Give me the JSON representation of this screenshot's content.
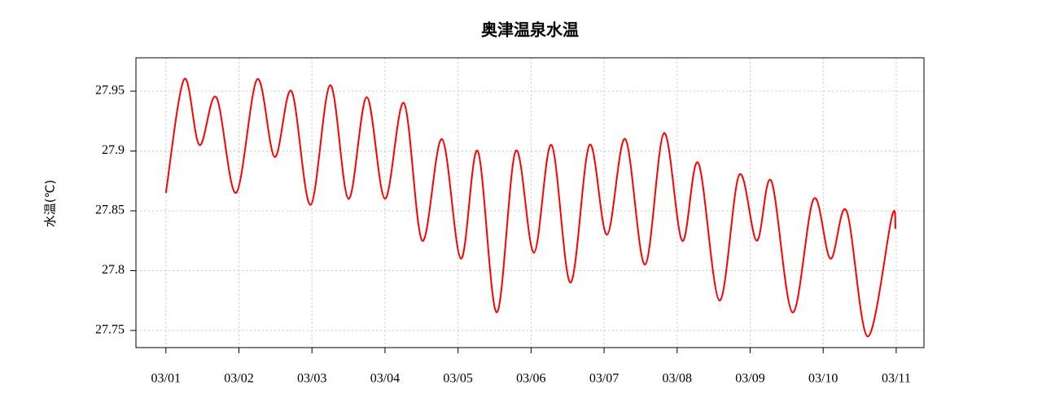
{
  "chart_data": {
    "type": "line",
    "title": "奥津温泉水温",
    "y_label": "水温(℃)",
    "x": [
      0,
      0.25,
      0.46,
      0.69,
      0.96,
      1.25,
      1.49,
      1.72,
      1.98,
      2.25,
      2.5,
      2.75,
      3.0,
      3.26,
      3.51,
      3.78,
      4.04,
      4.27,
      4.53,
      4.79,
      5.04,
      5.28,
      5.54,
      5.8,
      6.04,
      6.29,
      6.56,
      6.82,
      7.07,
      7.29,
      7.58,
      7.85,
      8.09,
      8.29,
      8.58,
      8.87,
      9.1,
      9.32,
      9.61,
      9.94,
      9.99
    ],
    "series": [
      {
        "color": "#ff0000",
        "values": [
          27.865,
          27.96,
          27.905,
          27.945,
          27.865,
          27.96,
          27.895,
          27.95,
          27.855,
          27.955,
          27.86,
          27.945,
          27.86,
          27.94,
          27.825,
          27.91,
          27.81,
          27.9,
          27.765,
          27.9,
          27.815,
          27.905,
          27.79,
          27.905,
          27.83,
          27.91,
          27.805,
          27.915,
          27.825,
          27.89,
          27.775,
          27.88,
          27.825,
          27.875,
          27.765,
          27.86,
          27.81,
          27.85,
          27.745,
          27.845,
          27.835
        ]
      }
    ],
    "xlim": [
      -0.41,
      10.38
    ],
    "ylim": [
      27.7357,
      27.9779
    ],
    "xticks": [
      {
        "value": 0,
        "label": "03/01"
      },
      {
        "value": 1,
        "label": "03/02"
      },
      {
        "value": 2,
        "label": "03/03"
      },
      {
        "value": 3,
        "label": "03/04"
      },
      {
        "value": 4,
        "label": "03/05"
      },
      {
        "value": 5,
        "label": "03/06"
      },
      {
        "value": 6,
        "label": "03/07"
      },
      {
        "value": 7,
        "label": "03/08"
      },
      {
        "value": 8,
        "label": "03/09"
      },
      {
        "value": 9,
        "label": "03/10"
      },
      {
        "value": 10,
        "label": "03/11"
      }
    ],
    "yticks": [
      27.75,
      27.8,
      27.85,
      27.9,
      27.95
    ],
    "grid": true
  }
}
